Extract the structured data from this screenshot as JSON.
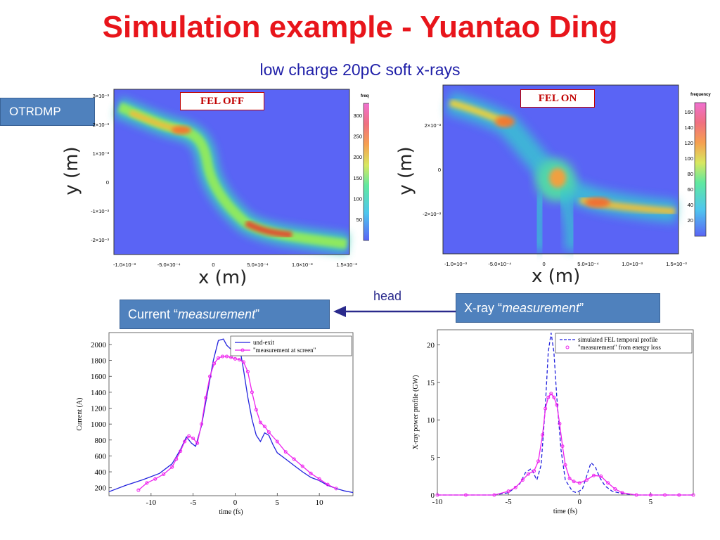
{
  "slide": {
    "title": "Simulation example - Yuantao Ding",
    "subtitle": "low charge 20pC soft x-rays",
    "otrdmp_label": "OTRDMP",
    "head_label": "head",
    "current_label_prefix": "Current  “",
    "current_label_em": "measurement",
    "current_label_suffix": "”",
    "xray_label_prefix": "X-ray “",
    "xray_label_em": "measurement",
    "xray_label_suffix": "”"
  },
  "colors": {
    "title": "#e8151b",
    "subtitle": "#1f1fa8",
    "box": "#4f81bd",
    "map_bg": "#5a64f5",
    "arrow": "#2a2a8c",
    "series_blue": "#2222dd",
    "series_magenta": "#ee22ee"
  },
  "chart_data": [
    {
      "type": "heatmap",
      "label": "FEL OFF",
      "xlabel": "x (m)",
      "ylabel": "y (m)",
      "x_ticks": [
        "-1.0×10⁻³",
        "-5.0×10⁻⁴",
        "0",
        "5.0×10⁻⁴",
        "1.0×10⁻³",
        "1.5×10⁻³"
      ],
      "y_ticks": [
        "3×10⁻³",
        "2×10⁻³",
        "1×10⁻³",
        "0",
        "-1×10⁻³",
        "-2×10⁻³"
      ],
      "colorbar_title": "frequency",
      "colorbar_ticks": [
        "300",
        "250",
        "200",
        "150",
        "100",
        "50"
      ],
      "colorbar_range": [
        0,
        330
      ]
    },
    {
      "type": "heatmap",
      "label": "FEL ON",
      "xlabel": "x (m)",
      "ylabel": "y (m)",
      "x_ticks": [
        "-1.0×10⁻³",
        "-5.0×10⁻⁴",
        "0",
        "5.0×10⁻⁴",
        "1.0×10⁻³",
        "1.5×10⁻³"
      ],
      "y_ticks": [
        "2×10⁻³",
        "0",
        "-2×10⁻³"
      ],
      "colorbar_title": "frequency",
      "colorbar_ticks": [
        "160",
        "140",
        "120",
        "100",
        "80",
        "60",
        "40",
        "20"
      ],
      "colorbar_range": [
        0,
        170
      ]
    },
    {
      "type": "line",
      "xlabel": "time (fs)",
      "ylabel": "Current (A)",
      "xlim": [
        -15,
        14
      ],
      "ylim": [
        100,
        2150
      ],
      "x_ticks": [
        -10,
        -5,
        0,
        5,
        10
      ],
      "y_ticks": [
        200,
        400,
        600,
        800,
        1000,
        1200,
        1400,
        1600,
        1800,
        2000
      ],
      "legend": [
        "und-exit",
        "\"measurement at screen\""
      ],
      "series": [
        {
          "name": "und-exit",
          "style": "solid",
          "x": [
            -15,
            -13,
            -11,
            -9,
            -7.5,
            -6.5,
            -5.8,
            -5.2,
            -4.7,
            -4,
            -3.2,
            -2.6,
            -2,
            -1.4,
            -1,
            -0.5,
            0,
            0.6,
            1,
            1.5,
            2,
            2.5,
            3,
            3.5,
            4,
            4.5,
            5,
            6,
            7,
            8,
            9,
            10,
            11,
            12,
            13,
            14
          ],
          "values": [
            150,
            230,
            300,
            380,
            500,
            680,
            840,
            760,
            720,
            980,
            1450,
            1800,
            2050,
            2070,
            1990,
            1940,
            1960,
            1920,
            1680,
            1340,
            1060,
            860,
            780,
            890,
            860,
            740,
            640,
            560,
            480,
            400,
            330,
            290,
            230,
            190,
            160,
            140
          ]
        },
        {
          "name": "\"measurement at screen\"",
          "style": "line-markers",
          "x": [
            -11.5,
            -10.5,
            -9.5,
            -8.5,
            -7.5,
            -7,
            -6.5,
            -6,
            -5.5,
            -5,
            -4.5,
            -4,
            -3.5,
            -3,
            -2.5,
            -2,
            -1.5,
            -1,
            -0.5,
            0,
            0.5,
            1,
            1.5,
            2,
            2.5,
            3,
            3.5,
            4,
            5,
            6,
            7,
            8,
            9,
            10,
            11,
            12
          ],
          "values": [
            170,
            260,
            310,
            370,
            460,
            560,
            660,
            780,
            850,
            820,
            760,
            1000,
            1330,
            1600,
            1760,
            1830,
            1850,
            1850,
            1840,
            1820,
            1810,
            1780,
            1660,
            1400,
            1180,
            1020,
            970,
            900,
            780,
            650,
            560,
            470,
            380,
            310,
            240,
            190
          ]
        }
      ]
    },
    {
      "type": "line",
      "xlabel": "time (fs)",
      "ylabel": "X-ray power profile (GW)",
      "xlim": [
        -10,
        8
      ],
      "ylim": [
        0,
        22
      ],
      "x_ticks": [
        -10,
        -5,
        0,
        5
      ],
      "y_ticks": [
        0,
        5,
        10,
        15,
        20
      ],
      "legend": [
        "simulated FEL temporal profile",
        "\"measurement\" from energy loss"
      ],
      "series": [
        {
          "name": "simulated FEL temporal profile",
          "style": "dashed",
          "x": [
            -10,
            -6,
            -5,
            -4.2,
            -3.8,
            -3.4,
            -3,
            -2.7,
            -2.4,
            -2.2,
            -2,
            -1.8,
            -1.6,
            -1.3,
            -1,
            -0.5,
            -0.2,
            0.2,
            0.5,
            0.8,
            1.1,
            1.4,
            1.8,
            2.3,
            3,
            4,
            6,
            8
          ],
          "values": [
            0,
            0,
            0.3,
            1.5,
            3,
            3.5,
            2,
            4,
            12,
            19,
            21.6,
            19,
            13,
            6,
            2,
            0.5,
            0.3,
            0.8,
            2.5,
            4.3,
            3.8,
            2.4,
            1.2,
            0.5,
            0.2,
            0,
            0,
            0
          ]
        },
        {
          "name": "\"measurement\" from energy loss",
          "style": "line-markers",
          "x": [
            -10,
            -8,
            -6,
            -5,
            -4.5,
            -4,
            -3.6,
            -3.2,
            -2.9,
            -2.6,
            -2.4,
            -2.2,
            -2,
            -1.8,
            -1.6,
            -1.4,
            -1.2,
            -1,
            -0.7,
            -0.4,
            0,
            0.5,
            1,
            1.5,
            2,
            2.5,
            3,
            4,
            5,
            6,
            7,
            8
          ],
          "values": [
            0,
            0,
            0,
            0.5,
            1,
            2,
            2.8,
            3.2,
            4.5,
            8,
            11.5,
            13,
            13.5,
            13,
            12,
            9.5,
            6.5,
            4,
            2.2,
            1.8,
            1.6,
            2,
            2.6,
            2.5,
            1.6,
            0.8,
            0.3,
            0,
            0,
            0,
            0,
            0
          ]
        }
      ]
    }
  ]
}
